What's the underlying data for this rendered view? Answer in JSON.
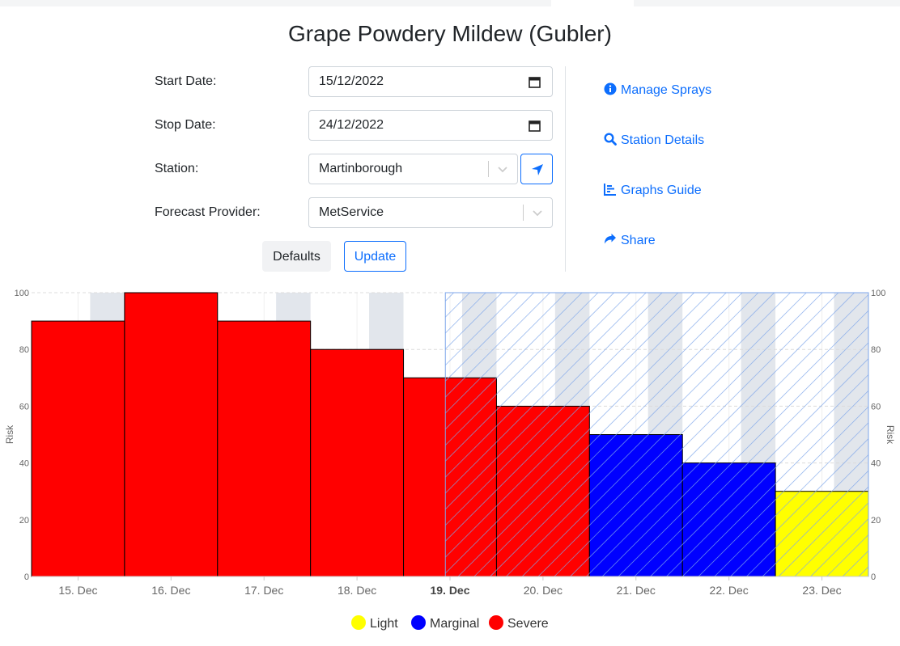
{
  "page": {
    "title": "Grape Powdery Mildew (Gubler)"
  },
  "form": {
    "start_date": {
      "label": "Start Date:",
      "value": "15/12/2022"
    },
    "stop_date": {
      "label": "Stop Date:",
      "value": "24/12/2022"
    },
    "station": {
      "label": "Station:",
      "value": "Martinborough"
    },
    "forecast_provider": {
      "label": "Forecast Provider:",
      "value": "MetService"
    },
    "defaults_label": "Defaults",
    "update_label": "Update"
  },
  "side_links": {
    "manage_sprays": "Manage Sprays",
    "station_details": "Station Details",
    "graphs_guide": "Graphs Guide",
    "share": "Share"
  },
  "colors": {
    "accent": "#0d6efd",
    "light": "#ffff00",
    "marginal": "#0000ff",
    "severe": "#ff0000",
    "forecast_hatch": "#7ea6ea",
    "night_band": "#e2e6ec"
  },
  "chart_data": {
    "type": "bar",
    "categories": [
      "15. Dec",
      "16. Dec",
      "17. Dec",
      "18. Dec",
      "19. Dec",
      "20. Dec",
      "21. Dec",
      "22. Dec",
      "23. Dec"
    ],
    "highlight_category": "19. Dec",
    "series": [
      {
        "name": "Risk",
        "values": [
          90,
          100,
          90,
          80,
          70,
          60,
          50,
          40,
          30
        ],
        "classes": [
          "Severe",
          "Severe",
          "Severe",
          "Severe",
          "Severe",
          "Severe",
          "Marginal",
          "Marginal",
          "Light"
        ]
      }
    ],
    "forecast_start": "19/12/2022 00:00",
    "ylabel": "Risk",
    "y2label": "Risk",
    "ylim": [
      0,
      100
    ],
    "yticks": [
      0,
      20,
      40,
      60,
      80,
      100
    ],
    "grid": "horizontal-dashed",
    "legend": {
      "position": "bottom-center",
      "items": [
        {
          "label": "Light",
          "color": "#ffff00"
        },
        {
          "label": "Marginal",
          "color": "#0000ff"
        },
        {
          "label": "Severe",
          "color": "#ff0000"
        }
      ]
    }
  }
}
